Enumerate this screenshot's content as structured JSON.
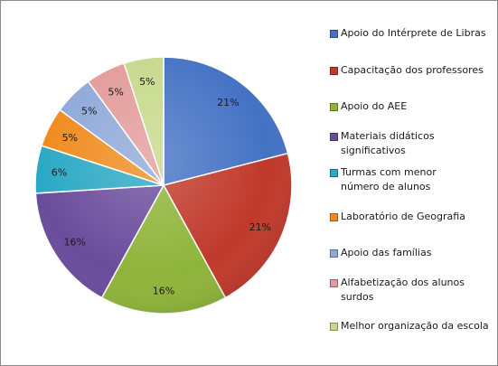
{
  "chart_data": {
    "type": "pie",
    "title": "",
    "categories": [
      "Apoio do Intérprete de Libras",
      "Capacitação dos professores",
      "Apoio do AEE",
      "Materiais didáticos significativos",
      "Turmas com menor número de alunos",
      "Laboratório de Geografia",
      "Apoio das famílias",
      "Alfabetização dos alunos surdos",
      "Melhor organização da escola"
    ],
    "values": [
      21,
      21,
      16,
      16,
      6,
      5,
      5,
      5,
      5
    ],
    "labels": [
      "21%",
      "21%",
      "16%",
      "16%",
      "6%",
      "5%",
      "5%",
      "5%",
      "5%"
    ],
    "colors": [
      "#4472c4",
      "#c0392b",
      "#8fb43a",
      "#6a4c9c",
      "#2aa8c4",
      "#f08a1c",
      "#8ea8d8",
      "#e39a9a",
      "#c6d98a"
    ],
    "legend_position": "right"
  }
}
